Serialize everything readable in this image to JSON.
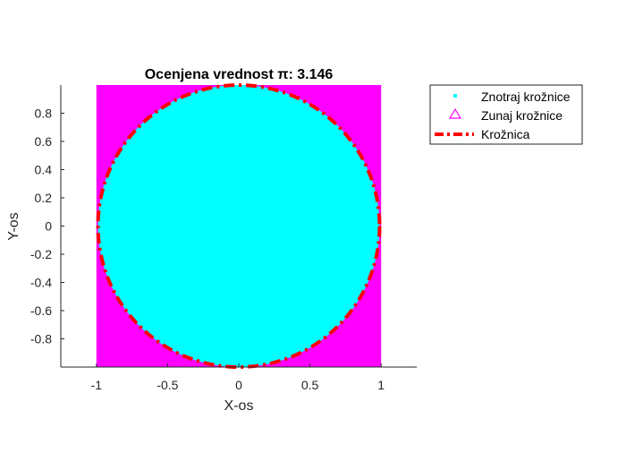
{
  "chart_data": {
    "type": "scatter",
    "title": "Ocenjena vrednost π: 3.146",
    "xlabel": "X-os",
    "ylabel": "Y-os",
    "xlim": [
      -1.25,
      1.25
    ],
    "ylim": [
      -1,
      1
    ],
    "xticks": [
      -1,
      -0.5,
      0,
      0.5,
      1
    ],
    "xtick_labels": [
      "-1",
      "-0.5",
      "0",
      "0.5",
      "1"
    ],
    "yticks": [
      -0.8,
      -0.6,
      -0.4,
      -0.2,
      0,
      0.2,
      0.4,
      0.6,
      0.8
    ],
    "ytick_labels": [
      "-0.8",
      "-0.6",
      "-0.4",
      "-0.2",
      "0",
      "0.2",
      "0.4",
      "0.6",
      "0.8"
    ],
    "grid": false,
    "legend_position": "outside-top-right",
    "pi_estimate": 3.146,
    "series": [
      {
        "name": "Znotraj krožnice",
        "kind": "points",
        "marker": "dot",
        "color": "#00ffff",
        "region": "x^2 + y^2 <= 1",
        "x_range": [
          -1,
          1
        ],
        "y_range": [
          -1,
          1
        ]
      },
      {
        "name": "Zunaj krožnice",
        "kind": "points",
        "marker": "triangle",
        "color": "#ff00ff",
        "region": "x^2 + y^2 > 1",
        "x_range": [
          -1,
          1
        ],
        "y_range": [
          -1,
          1
        ]
      },
      {
        "name": "Krožnica",
        "kind": "line",
        "style": "dash-dot",
        "color": "#ff0000",
        "shape": "unit circle",
        "center": [
          0,
          0
        ],
        "radius": 1
      }
    ]
  }
}
